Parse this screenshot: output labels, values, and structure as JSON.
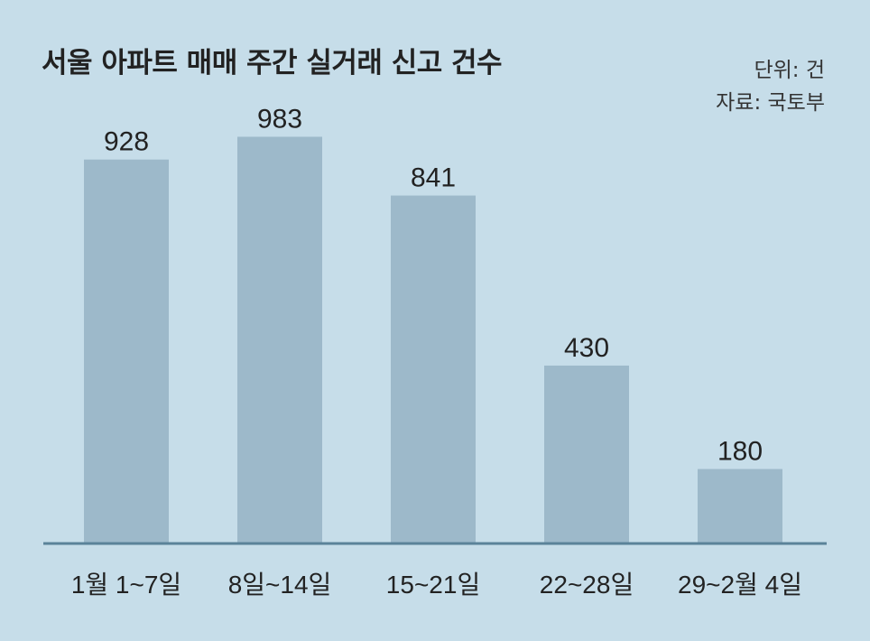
{
  "header": {
    "title": "서울 아파트 매매 주간 실거래 신고 건수",
    "unit": "단위: 건",
    "source": "자료: 국토부"
  },
  "colors": {
    "background": "#c6dde9",
    "bar": "#9db9ca",
    "axis": "#5b8399",
    "text": "#222222"
  },
  "chart_data": {
    "type": "bar",
    "categories": [
      "1월 1~7일",
      "8일~14일",
      "15~21일",
      "22~28일",
      "29~2월 4일"
    ],
    "values": [
      928,
      983,
      841,
      430,
      180
    ],
    "title": "서울 아파트 매매 주간 실거래 신고 건수",
    "xlabel": "",
    "ylabel": "",
    "ylim": [
      0,
      1000
    ],
    "grid": false,
    "legend": "none",
    "data_labels": true
  }
}
